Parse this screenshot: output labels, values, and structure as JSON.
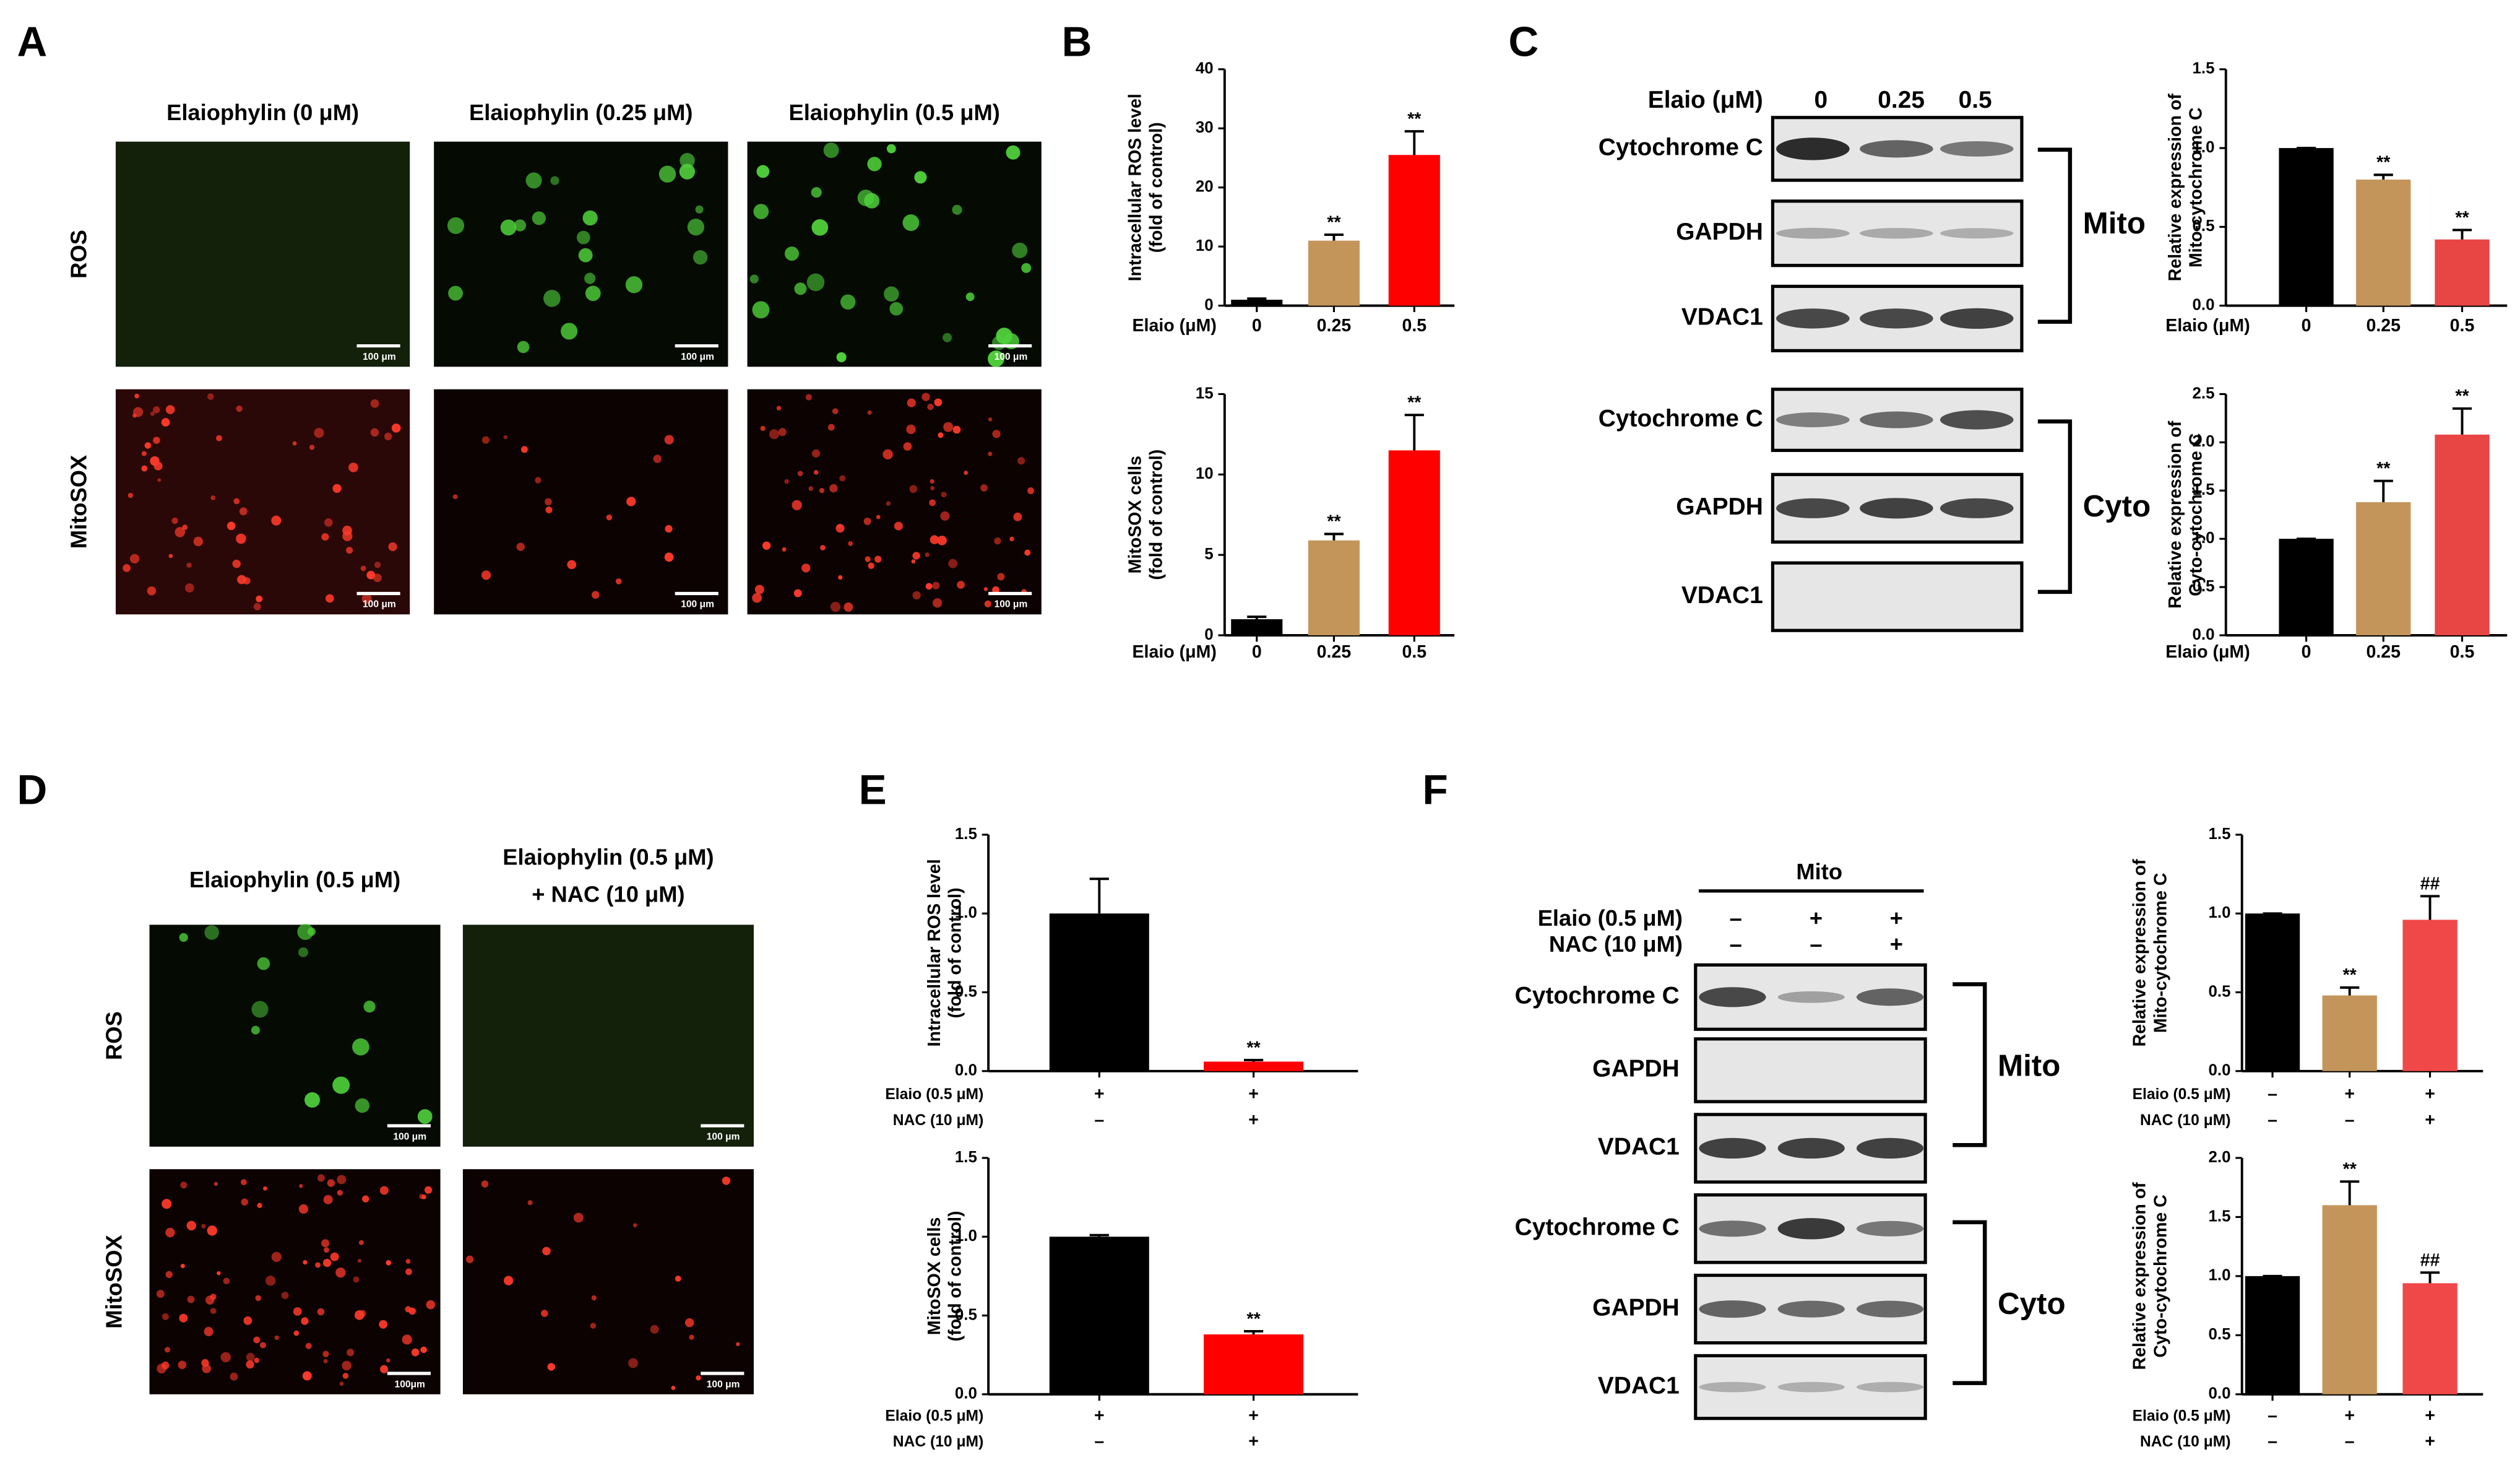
{
  "figure": {
    "panel_labels": [
      "A",
      "B",
      "C",
      "D",
      "E",
      "F"
    ],
    "A": {
      "columns": [
        "Elaiophylin (0 μM)",
        "Elaiophylin (0.25 μM)",
        "Elaiophylin (0.5 μM)"
      ],
      "rows": [
        "ROS",
        "MitoSOX"
      ],
      "scale_bars": [
        "100 μm",
        "100 μm",
        "100 μm",
        "100 μm",
        "100 μm",
        "100 μm"
      ]
    },
    "C": {
      "header": "Elaio (μM)",
      "lanes": [
        "0",
        "0.25",
        "0.5"
      ],
      "rows": [
        "Cytochrome C",
        "GAPDH",
        "VDAC1",
        "Cytochrome C",
        "GAPDH",
        "VDAC1"
      ],
      "groups": [
        "Mito",
        "Cyto"
      ]
    },
    "D": {
      "columns": [
        [
          "Elaiophylin (0.5 μM)"
        ],
        [
          "Elaiophylin (0.5 μM)",
          "+ NAC (10 μM)"
        ]
      ],
      "rows": [
        "ROS",
        "MitoSOX"
      ],
      "scale_bars": [
        "100 μm",
        "100 μm",
        "100μm",
        "100 μm"
      ]
    },
    "F": {
      "header": "Mito",
      "conditions": [
        {
          "label": "Elaio (0.5 μM)",
          "signs": [
            "–",
            "+",
            "+"
          ]
        },
        {
          "label": "NAC (10 μM)",
          "signs": [
            "–",
            "–",
            "+"
          ]
        }
      ],
      "rows": [
        "Cytochrome C",
        "GAPDH",
        "VDAC1",
        "Cytochrome C",
        "GAPDH",
        "VDAC1"
      ],
      "groups": [
        "Mito",
        "Cyto"
      ]
    }
  },
  "chart_data": [
    {
      "type": "bar",
      "ylabel": [
        "Intracellular ROS level",
        "(fold of control)"
      ],
      "row_label": "Elaio (μM)",
      "categories": [
        "0",
        "0.25",
        "0.5"
      ],
      "values": [
        1,
        11,
        25.5
      ],
      "errors": [
        0.2,
        1,
        4
      ],
      "significance": [
        null,
        "**",
        "**"
      ],
      "colors": [
        "#000000",
        "#c4955a",
        "#ff0000"
      ],
      "ylim": [
        0,
        40
      ],
      "yticks": [
        0,
        10,
        20,
        30,
        40
      ]
    },
    {
      "type": "bar",
      "ylabel": [
        "MitoSOX cells",
        "(fold of control)"
      ],
      "row_label": "Elaio (μM)",
      "categories": [
        "0",
        "0.25",
        "0.5"
      ],
      "values": [
        1,
        5.9,
        11.5
      ],
      "errors": [
        0.15,
        0.4,
        2.2
      ],
      "significance": [
        null,
        "**",
        "**"
      ],
      "colors": [
        "#000000",
        "#c4955a",
        "#ff0000"
      ],
      "ylim": [
        0,
        15
      ],
      "yticks": [
        0,
        5,
        10,
        15
      ]
    },
    {
      "type": "bar",
      "ylabel": [
        "Relative expression of",
        "Mito-cytochrome C"
      ],
      "row_label": "Elaio (μM)",
      "categories": [
        "0",
        "0.25",
        "0.5"
      ],
      "values": [
        1,
        0.8,
        0.42
      ],
      "errors": [
        0,
        0.03,
        0.06
      ],
      "significance": [
        null,
        "**",
        "**"
      ],
      "colors": [
        "#000000",
        "#c4955a",
        "#e84545"
      ],
      "ylim": [
        0,
        1.5
      ],
      "yticks": [
        {
          "value": 0,
          "label": "0.0"
        },
        0.5,
        {
          "value": 1,
          "label": "1.0"
        },
        1.5
      ]
    },
    {
      "type": "bar",
      "ylabel": [
        "Relative expression of",
        "Cyto-cytochrome C"
      ],
      "row_label": "Elaio (μM)",
      "categories": [
        "0",
        "0.25",
        "0.5"
      ],
      "values": [
        1,
        1.38,
        2.08
      ],
      "errors": [
        0,
        0.22,
        0.27
      ],
      "significance": [
        null,
        "**",
        "**"
      ],
      "colors": [
        "#000000",
        "#c4955a",
        "#e84545"
      ],
      "ylim": [
        0,
        2.5
      ],
      "yticks": [
        {
          "value": 0,
          "label": "0.0"
        },
        0.5,
        {
          "value": 1,
          "label": "1.0"
        },
        1.5,
        {
          "value": 2,
          "label": "2.0"
        },
        2.5
      ]
    },
    {
      "type": "bar",
      "ylabel": [
        "Intracellular ROS level",
        "(fold of control)"
      ],
      "conditions": [
        {
          "label": "Elaio (0.5 μM)",
          "signs": [
            "+",
            "+"
          ]
        },
        {
          "label": "NAC (10 μM)",
          "signs": [
            "–",
            "+"
          ]
        }
      ],
      "values": [
        1,
        0.06
      ],
      "errors": [
        0.22,
        0.01
      ],
      "significance": [
        null,
        "**"
      ],
      "colors": [
        "#000000",
        "#ff0000"
      ],
      "ylim": [
        0,
        1.5
      ],
      "yticks": [
        {
          "value": 0,
          "label": "0.0"
        },
        0.5,
        {
          "value": 1,
          "label": "1.0"
        },
        1.5
      ]
    },
    {
      "type": "bar",
      "ylabel": [
        "MitoSOX cells",
        "(fold of control)"
      ],
      "conditions": [
        {
          "label": "Elaio (0.5 μM)",
          "signs": [
            "+",
            "+"
          ]
        },
        {
          "label": "NAC (10 μM)",
          "signs": [
            "–",
            "+"
          ]
        }
      ],
      "values": [
        1,
        0.38
      ],
      "errors": [
        0.01,
        0.02
      ],
      "significance": [
        null,
        "**"
      ],
      "colors": [
        "#000000",
        "#ff0000"
      ],
      "ylim": [
        0,
        1.5
      ],
      "yticks": [
        {
          "value": 0,
          "label": "0.0"
        },
        0.5,
        {
          "value": 1,
          "label": "1.0"
        },
        1.5
      ]
    },
    {
      "type": "bar",
      "ylabel": [
        "Relative expression of",
        "Mito-cytochrome C"
      ],
      "conditions": [
        {
          "label": "Elaio (0.5 μM)",
          "signs": [
            "–",
            "+",
            "+"
          ]
        },
        {
          "label": "NAC (10 μM)",
          "signs": [
            "–",
            "–",
            "+"
          ]
        }
      ],
      "values": [
        1,
        0.48,
        0.96
      ],
      "errors": [
        0,
        0.05,
        0.15
      ],
      "significance": [
        null,
        "**",
        "##"
      ],
      "colors": [
        "#000000",
        "#c4955a",
        "#f04848"
      ],
      "ylim": [
        0,
        1.5
      ],
      "yticks": [
        {
          "value": 0,
          "label": "0.0"
        },
        0.5,
        {
          "value": 1,
          "label": "1.0"
        },
        1.5
      ]
    },
    {
      "type": "bar",
      "ylabel": [
        "Relative expression of",
        "Cyto-cytochrome C"
      ],
      "conditions": [
        {
          "label": "Elaio (0.5 μM)",
          "signs": [
            "–",
            "+",
            "+"
          ]
        },
        {
          "label": "NAC (10 μM)",
          "signs": [
            "–",
            "–",
            "+"
          ]
        }
      ],
      "values": [
        1,
        1.6,
        0.94
      ],
      "errors": [
        0,
        0.2,
        0.09
      ],
      "significance": [
        null,
        "**",
        "##"
      ],
      "colors": [
        "#000000",
        "#c4955a",
        "#f04848"
      ],
      "ylim": [
        0,
        2
      ],
      "yticks": [
        {
          "value": 0,
          "label": "0.0"
        },
        0.5,
        {
          "value": 1,
          "label": "1.0"
        },
        1.5,
        {
          "value": 2,
          "label": "2.0"
        }
      ]
    }
  ]
}
